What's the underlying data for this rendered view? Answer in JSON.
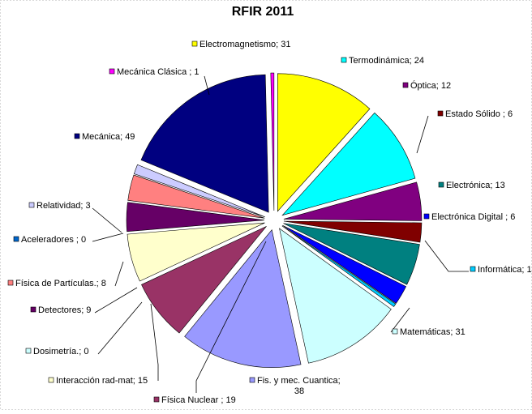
{
  "chart_data": {
    "type": "pie",
    "title": "RFIR 2011",
    "exploded": true,
    "start_angle_deg": 90,
    "direction": "clockwise",
    "slices": [
      {
        "name": "Electromagnetismo",
        "value": 31,
        "color": "#ffff00",
        "label": "Electromagnetismo; 31"
      },
      {
        "name": "Termodinámica",
        "value": 24,
        "color": "#00ffff",
        "label": "Termodinámica; 24"
      },
      {
        "name": "Óptica",
        "value": 12,
        "color": "#800080",
        "label": "Óptica; 12"
      },
      {
        "name": "Estado Sólido",
        "value": 6,
        "color": "#800000",
        "label": "Estado Sólido ; 6"
      },
      {
        "name": "Electrónica",
        "value": 13,
        "color": "#008080",
        "label": "Electrónica; 13"
      },
      {
        "name": "Electrónica Digital",
        "value": 6,
        "color": "#0000ff",
        "label": "Electrónica Digital ; 6"
      },
      {
        "name": "Informática",
        "value": 1,
        "color": "#00ccff",
        "label": "Informática; 1"
      },
      {
        "name": "Matemáticas",
        "value": 31,
        "color": "#ccffff",
        "label": "Matemáticas; 31"
      },
      {
        "name": "Fis. y mec. Cuantica",
        "value": 38,
        "color": "#9999ff",
        "label": "Fis. y mec. Cuantica;",
        "label2": "38"
      },
      {
        "name": "Física Nuclear",
        "value": 19,
        "color": "#993366",
        "label": "Física Nuclear ; 19"
      },
      {
        "name": "Interacción rad-mat",
        "value": 15,
        "color": "#ffffcc",
        "label": "Interacción rad-mat; 15"
      },
      {
        "name": "Dosimetría.",
        "value": 0,
        "color": "#ccffff",
        "label": "Dosimetría.; 0"
      },
      {
        "name": "Detectores",
        "value": 9,
        "color": "#660066",
        "label": "Detectores; 9"
      },
      {
        "name": "Física de Partículas.",
        "value": 8,
        "color": "#ff8080",
        "label": "Física de Partículas.; 8"
      },
      {
        "name": "Aceleradores",
        "value": 0,
        "color": "#0066cc",
        "label": "Aceleradores ; 0"
      },
      {
        "name": "Relatividad",
        "value": 3,
        "color": "#ccccff",
        "label": "Relatividad; 3"
      },
      {
        "name": "Mecánica",
        "value": 49,
        "color": "#000080",
        "label": "Mecánica; 49"
      },
      {
        "name": "Mecánica Clásica",
        "value": 1,
        "color": "#ff00ff",
        "label": "Mecánica Clásica ; 1"
      }
    ]
  }
}
